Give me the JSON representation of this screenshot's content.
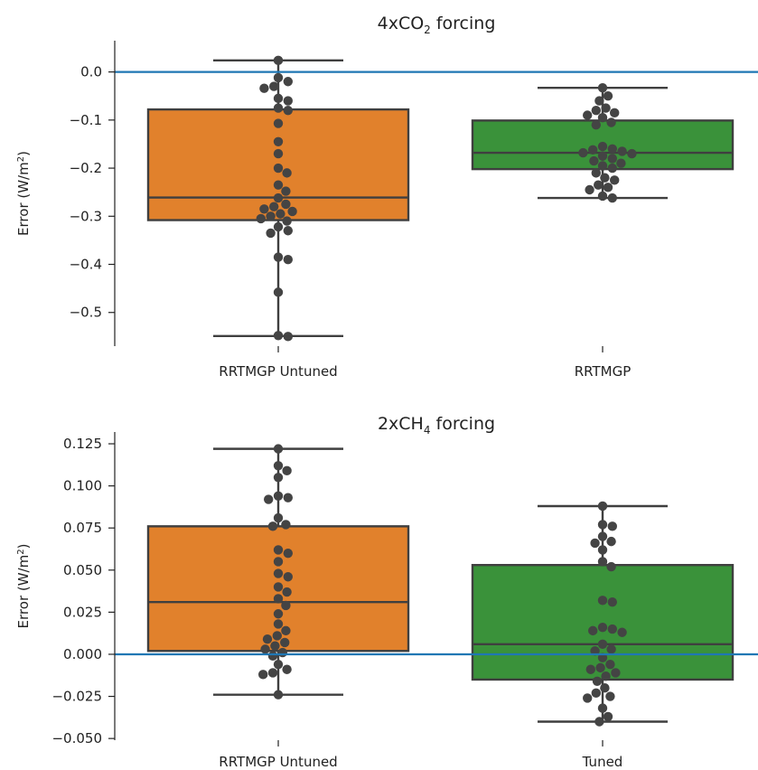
{
  "chart_data": [
    {
      "type": "box",
      "title": {
        "prefix": "4xCO",
        "sub": "2",
        "suffix": " forcing"
      },
      "ylabel": {
        "prefix": "Error (W/m",
        "sup": "2",
        "suffix": ")"
      },
      "ylim": [
        -0.57,
        0.065
      ],
      "yticks": [
        0.0,
        -0.1,
        -0.2,
        -0.3,
        -0.4,
        -0.5
      ],
      "ytick_labels": [
        "0.0",
        "−0.1",
        "−0.2",
        "−0.3",
        "−0.4",
        "−0.5"
      ],
      "reference_line": 0.0,
      "categories": [
        "RRTMGP Untuned",
        "RRTMGP"
      ],
      "boxes": [
        {
          "name": "RRTMGP Untuned",
          "color": "#e1812c",
          "q1": -0.308,
          "median": -0.261,
          "q3": -0.078,
          "whisker_low": -0.549,
          "whisker_high": 0.024
        },
        {
          "name": "RRTMGP",
          "color": "#3a923a",
          "q1": -0.202,
          "median": -0.168,
          "q3": -0.101,
          "whisker_low": -0.262,
          "whisker_high": -0.033
        }
      ],
      "points": [
        [
          0.024,
          -0.012,
          -0.02,
          -0.03,
          -0.034,
          -0.055,
          -0.06,
          -0.075,
          -0.08,
          -0.107,
          -0.145,
          -0.17,
          -0.2,
          -0.21,
          -0.235,
          -0.248,
          -0.262,
          -0.275,
          -0.28,
          -0.285,
          -0.29,
          -0.295,
          -0.3,
          -0.305,
          -0.31,
          -0.322,
          -0.33,
          -0.335,
          -0.385,
          -0.39,
          -0.458,
          -0.548,
          -0.55
        ],
        [
          -0.033,
          -0.05,
          -0.06,
          -0.075,
          -0.08,
          -0.085,
          -0.09,
          -0.095,
          -0.105,
          -0.11,
          -0.155,
          -0.16,
          -0.162,
          -0.165,
          -0.168,
          -0.17,
          -0.175,
          -0.18,
          -0.185,
          -0.19,
          -0.195,
          -0.2,
          -0.21,
          -0.22,
          -0.225,
          -0.235,
          -0.24,
          -0.245,
          -0.258,
          -0.262
        ]
      ],
      "grid": false
    },
    {
      "type": "box",
      "title": {
        "prefix": "2xCH",
        "sub": "4",
        "suffix": " forcing"
      },
      "ylabel": {
        "prefix": "Error (W/m",
        "sup": "2",
        "suffix": ")"
      },
      "ylim": [
        -0.051,
        0.132
      ],
      "yticks": [
        0.125,
        0.1,
        0.075,
        0.05,
        0.025,
        0.0,
        -0.025,
        -0.05
      ],
      "ytick_labels": [
        "0.125",
        "0.100",
        "0.075",
        "0.050",
        "0.025",
        "0.000",
        "−0.025",
        "−0.050"
      ],
      "reference_line": 0.0,
      "categories": [
        "RRTMGP Untuned",
        "Tuned"
      ],
      "boxes": [
        {
          "name": "RRTMGP Untuned",
          "color": "#e1812c",
          "q1": 0.002,
          "median": 0.031,
          "q3": 0.076,
          "whisker_low": -0.024,
          "whisker_high": 0.122
        },
        {
          "name": "Tuned",
          "color": "#3a923a",
          "q1": -0.015,
          "median": 0.006,
          "q3": 0.053,
          "whisker_low": -0.04,
          "whisker_high": 0.088
        }
      ],
      "points": [
        [
          0.122,
          0.112,
          0.109,
          0.105,
          0.094,
          0.093,
          0.092,
          0.081,
          0.077,
          0.076,
          0.062,
          0.06,
          0.055,
          0.048,
          0.046,
          0.04,
          0.037,
          0.033,
          0.029,
          0.024,
          0.018,
          0.014,
          0.011,
          0.009,
          0.007,
          0.005,
          0.003,
          0.001,
          -0.001,
          -0.006,
          -0.009,
          -0.011,
          -0.012,
          -0.024
        ],
        [
          0.088,
          0.077,
          0.076,
          0.07,
          0.067,
          0.066,
          0.062,
          0.055,
          0.052,
          0.032,
          0.031,
          0.016,
          0.015,
          0.014,
          0.013,
          0.006,
          0.003,
          0.002,
          -0.002,
          -0.006,
          -0.008,
          -0.009,
          -0.011,
          -0.013,
          -0.016,
          -0.02,
          -0.023,
          -0.025,
          -0.026,
          -0.032,
          -0.037,
          -0.04
        ]
      ],
      "grid": false
    }
  ]
}
